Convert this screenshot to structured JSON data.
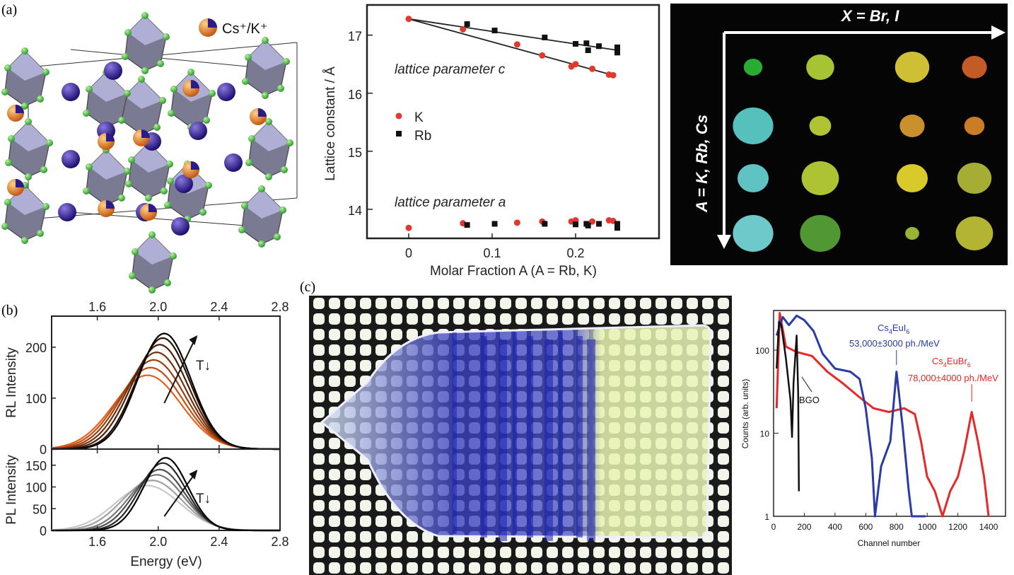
{
  "panel_labels": {
    "a": "(a)",
    "b": "(b)",
    "c": "(c)"
  },
  "structure": {
    "legend_label": "Cs⁺/K⁺",
    "colors": {
      "octahedra": "#8a8aa8",
      "cs_k": "#e07a20",
      "blue_sphere": "#2a1a8a",
      "halide": "#3dbb3d"
    }
  },
  "composition_map": {
    "x_label": "X = Br, I",
    "y_label": "A = K, Rb, Cs",
    "background": "#050505",
    "spot_colors": [
      [
        "#2fbf3a",
        "#b8d83a",
        "#e4d43a",
        "#d9642a"
      ],
      [
        "#5fd6d0",
        "#c4d83a",
        "#e0a030",
        "#e08a2a"
      ],
      [
        "#6ad8d8",
        "#c0d83a",
        "#f0e030",
        "#b8c03a"
      ],
      [
        "#7ae0e0",
        "#5aa83a",
        "#a8c83a",
        "#c8c83a"
      ]
    ]
  },
  "photo": {
    "description_hidden": ""
  },
  "chart_data": [
    {
      "type": "scatter",
      "panel": "a",
      "xlabel": "Molar Fraction A (A = Rb, K)",
      "ylabel": "Lattice constant / Å",
      "xlim": [
        -0.05,
        0.3
      ],
      "ylim": [
        13.5,
        17.52
      ],
      "xticks": [
        "0",
        "0.1",
        "0.2"
      ],
      "xtick_values": [
        0,
        0.1,
        0.2
      ],
      "yticks": [
        "14",
        "15",
        "16",
        "17"
      ],
      "ytick_values": [
        14,
        15,
        16,
        17
      ],
      "legend": "left-middle",
      "annotations": [
        "lattice parameter c",
        "lattice parameter a"
      ],
      "series": [
        {
          "name": "K",
          "marker": "circle",
          "color": "#e03a30",
          "points": [
            [
              0,
              17.28
            ],
            [
              0.065,
              17.1
            ],
            [
              0.13,
              16.84
            ],
            [
              0.16,
              16.65
            ],
            [
              0.195,
              16.46
            ],
            [
              0.2,
              16.5
            ],
            [
              0.22,
              16.42
            ],
            [
              0.24,
              16.32
            ],
            [
              0.245,
              16.31
            ],
            [
              0,
              13.68
            ],
            [
              0.065,
              13.76
            ],
            [
              0.13,
              13.77
            ],
            [
              0.16,
              13.79
            ],
            [
              0.195,
              13.79
            ],
            [
              0.2,
              13.81
            ],
            [
              0.22,
              13.79
            ],
            [
              0.24,
              13.81
            ],
            [
              0.245,
              13.8
            ]
          ]
        },
        {
          "name": "Rb",
          "marker": "square",
          "color": "#111111",
          "points": [
            [
              0.07,
              17.19
            ],
            [
              0.103,
              17.08
            ],
            [
              0.163,
              16.96
            ],
            [
              0.2,
              16.85
            ],
            [
              0.213,
              16.86
            ],
            [
              0.215,
              16.74
            ],
            [
              0.228,
              16.81
            ],
            [
              0.25,
              16.79
            ],
            [
              0.25,
              16.7
            ],
            [
              0.07,
              13.73
            ],
            [
              0.103,
              13.75
            ],
            [
              0.163,
              13.75
            ],
            [
              0.2,
              13.74
            ],
            [
              0.213,
              13.75
            ],
            [
              0.215,
              13.72
            ],
            [
              0.228,
              13.75
            ],
            [
              0.25,
              13.75
            ],
            [
              0.25,
              13.68
            ]
          ]
        }
      ],
      "fit_lines": [
        {
          "series": "K",
          "from": [
            0,
            17.28
          ],
          "to": [
            0.245,
            16.31
          ]
        },
        {
          "series": "Rb",
          "from": [
            0,
            17.28
          ],
          "to": [
            0.25,
            16.74
          ]
        }
      ]
    },
    {
      "type": "line",
      "panel": "b-top",
      "ylabel": "RL Intensity",
      "xlim": [
        1.3,
        2.8
      ],
      "ylim": [
        0,
        261
      ],
      "xticks": [
        "1.6",
        "2.0",
        "2.4",
        "2.8"
      ],
      "xtick_values": [
        1.6,
        2.0,
        2.4,
        2.8
      ],
      "yticks": [
        "0",
        "100",
        "200"
      ],
      "ytick_values": [
        0,
        100,
        200
      ],
      "annotation": "T↓",
      "color_from": "#e8601a",
      "color_to": "#000000",
      "curves_gaussian": [
        {
          "center_eV": 1.93,
          "peak": 145,
          "fwhm_eV": 0.52
        },
        {
          "center_eV": 1.95,
          "peak": 160,
          "fwhm_eV": 0.5
        },
        {
          "center_eV": 1.97,
          "peak": 175,
          "fwhm_eV": 0.48
        },
        {
          "center_eV": 1.99,
          "peak": 190,
          "fwhm_eV": 0.46
        },
        {
          "center_eV": 2.01,
          "peak": 205,
          "fwhm_eV": 0.44
        },
        {
          "center_eV": 2.03,
          "peak": 218,
          "fwhm_eV": 0.42
        },
        {
          "center_eV": 2.04,
          "peak": 227,
          "fwhm_eV": 0.41
        }
      ]
    },
    {
      "type": "line",
      "panel": "b-bottom",
      "xlabel": "Energy (eV)",
      "ylabel": "PL Intensity",
      "xlim": [
        1.3,
        2.8
      ],
      "ylim": [
        0,
        187
      ],
      "xticks": [
        "1.6",
        "2.0",
        "2.4",
        "2.8"
      ],
      "xtick_values": [
        1.6,
        2.0,
        2.4,
        2.8
      ],
      "yticks": [
        "0",
        "50",
        "100",
        "150"
      ],
      "ytick_values": [
        0,
        50,
        100,
        150
      ],
      "annotation": "T↓",
      "color_from": "#c8c8c8",
      "color_to": "#000000",
      "curves_gaussian": [
        {
          "center_eV": 1.93,
          "peak": 103,
          "fwhm_eV": 0.5
        },
        {
          "center_eV": 1.96,
          "peak": 115,
          "fwhm_eV": 0.46
        },
        {
          "center_eV": 1.99,
          "peak": 128,
          "fwhm_eV": 0.42
        },
        {
          "center_eV": 2.01,
          "peak": 140,
          "fwhm_eV": 0.39
        },
        {
          "center_eV": 2.03,
          "peak": 155,
          "fwhm_eV": 0.36
        },
        {
          "center_eV": 2.05,
          "peak": 167,
          "fwhm_eV": 0.34
        }
      ]
    },
    {
      "type": "line",
      "panel": "c",
      "xlabel": "Channel number",
      "ylabel": "Counts (arb. units)",
      "yscale": "log",
      "xlim": [
        0,
        1510
      ],
      "ylim": [
        1,
        300
      ],
      "xticks": [
        "0",
        "200",
        "400",
        "600",
        "800",
        "1000",
        "1200",
        "1400"
      ],
      "xtick_values": [
        0,
        200,
        400,
        600,
        800,
        1000,
        1200,
        1400
      ],
      "yticks": [
        "1",
        "10",
        "100"
      ],
      "ytick_values": [
        1,
        10,
        100
      ],
      "annotations": [
        {
          "text_main": "Cs",
          "sub1": "4",
          "text_mid": "EuI",
          "sub2": "6",
          "value": "53,000±3000 ph./MeV",
          "color": "#2a3aa8",
          "peak_channel": 800
        },
        {
          "text_main": "Cs",
          "sub1": "4",
          "text_mid": "EuBr",
          "sub2": "6",
          "value": "78,000±4000 ph./MeV",
          "color": "#e82828",
          "peak_channel": 1290
        },
        {
          "text": "BGO",
          "color": "#111111"
        }
      ],
      "series": [
        {
          "name": "BGO",
          "color": "#111111",
          "points": [
            [
              20,
              60
            ],
            [
              35,
              220
            ],
            [
              50,
              200
            ],
            [
              80,
              80
            ],
            [
              110,
              25
            ],
            [
              120,
              9
            ],
            [
              130,
              40
            ],
            [
              150,
              150
            ],
            [
              160,
              30
            ],
            [
              165,
              2
            ]
          ]
        },
        {
          "name": "Cs4EuI6",
          "color": "#2a3aa8",
          "points": [
            [
              20,
              150
            ],
            [
              60,
              250
            ],
            [
              100,
              200
            ],
            [
              150,
              260
            ],
            [
              200,
              230
            ],
            [
              260,
              170
            ],
            [
              320,
              90
            ],
            [
              400,
              60
            ],
            [
              500,
              55
            ],
            [
              560,
              45
            ],
            [
              600,
              20
            ],
            [
              640,
              5
            ],
            [
              660,
              1
            ],
            [
              700,
              4
            ],
            [
              760,
              8
            ],
            [
              800,
              55
            ],
            [
              840,
              12
            ],
            [
              880,
              2
            ],
            [
              900,
              1
            ],
            [
              960,
              1
            ],
            [
              990,
              1
            ]
          ]
        },
        {
          "name": "Cs4EuBr6",
          "color": "#e82828",
          "points": [
            [
              20,
              20
            ],
            [
              40,
              280
            ],
            [
              80,
              110
            ],
            [
              150,
              95
            ],
            [
              250,
              85
            ],
            [
              350,
              55
            ],
            [
              450,
              40
            ],
            [
              550,
              28
            ],
            [
              650,
              20
            ],
            [
              750,
              18
            ],
            [
              850,
              20
            ],
            [
              920,
              17
            ],
            [
              960,
              8
            ],
            [
              1000,
              3
            ],
            [
              1050,
              2
            ],
            [
              1100,
              1
            ],
            [
              1150,
              2
            ],
            [
              1200,
              3
            ],
            [
              1240,
              6
            ],
            [
              1290,
              18
            ],
            [
              1330,
              8
            ],
            [
              1370,
              3
            ],
            [
              1400,
              1
            ]
          ]
        }
      ]
    }
  ]
}
